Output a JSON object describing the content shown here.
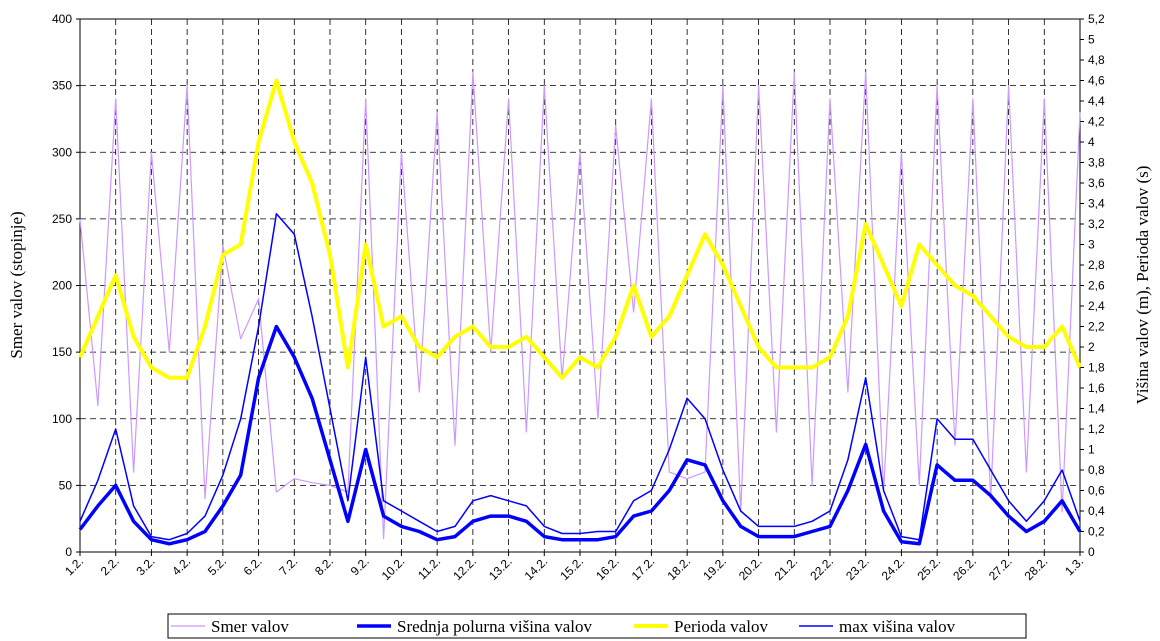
{
  "chart_data": {
    "type": "line",
    "ylabel": "Smer valov (stopinje)",
    "y2label": "Višina valov (m), Perioda valov (s)",
    "categories": [
      "1.2.",
      null,
      "2.2.",
      null,
      "3.2.",
      null,
      "4.2.",
      null,
      "5.2.",
      null,
      "6.2.",
      null,
      "7.2.",
      null,
      "8.2.",
      null,
      "9.2.",
      null,
      "10.2.",
      null,
      "11.2.",
      null,
      "12.2.",
      null,
      "13.2.",
      null,
      "14.2.",
      null,
      "15.2.",
      null,
      "16.2.",
      null,
      "17.2.",
      null,
      "18.2.",
      null,
      "19.2.",
      null,
      "20.2.",
      null,
      "21.2.",
      null,
      "22.2.",
      null,
      "23.2.",
      null,
      "24.2.",
      null,
      "25.2.",
      null,
      "26.2.",
      null,
      "27.2.",
      null,
      "28.2.",
      null,
      "1.3."
    ],
    "ylim": [
      0,
      400
    ],
    "yticks": [
      0,
      50,
      100,
      150,
      200,
      250,
      300,
      350,
      400
    ],
    "y2lim": [
      0,
      5.2
    ],
    "y2ticks": [
      0,
      {
        "value": 0.2,
        "label": "0,2"
      },
      {
        "value": 0.4,
        "label": "0,4"
      },
      {
        "value": 0.6,
        "label": "0,6"
      },
      {
        "value": 0.8,
        "label": "0,8"
      },
      1,
      {
        "value": 1.2,
        "label": "1,2"
      },
      {
        "value": 1.4,
        "label": "1,4"
      },
      {
        "value": 1.6,
        "label": "1,6"
      },
      {
        "value": 1.8,
        "label": "1,8"
      },
      2,
      {
        "value": 2.2,
        "label": "2,2"
      },
      {
        "value": 2.4,
        "label": "2,4"
      },
      {
        "value": 2.6,
        "label": "2,6"
      },
      {
        "value": 2.8,
        "label": "2,8"
      },
      3,
      {
        "value": 3.2,
        "label": "3,2"
      },
      {
        "value": 3.4,
        "label": "3,4"
      },
      {
        "value": 3.6,
        "label": "3,6"
      },
      {
        "value": 3.8,
        "label": "3,8"
      },
      4,
      {
        "value": 4.2,
        "label": "4,2"
      },
      {
        "value": 4.4,
        "label": "4,4"
      },
      {
        "value": 4.6,
        "label": "4,6"
      },
      {
        "value": 4.8,
        "label": "4,8"
      },
      5,
      {
        "value": 5.2,
        "label": "5,2"
      }
    ],
    "grid": true,
    "series": [
      {
        "name": "Smer valov",
        "color": "#cc99ff",
        "values": [
          250,
          110,
          340,
          60,
          300,
          150,
          350,
          40,
          230,
          160,
          190,
          45,
          55,
          52,
          50,
          45,
          340,
          10,
          300,
          120,
          330,
          80,
          360,
          150,
          340,
          90,
          350,
          130,
          300,
          100,
          320,
          180,
          340,
          60,
          55,
          60,
          350,
          30,
          350,
          90,
          360,
          50,
          340,
          120,
          360,
          45,
          300,
          50,
          350,
          80,
          340,
          40,
          350,
          60,
          340,
          30,
          330
        ]
      },
      {
        "name": "Srednja polurna višina valov",
        "color": "#0000ff",
        "axis": "y2",
        "values": [
          0.22,
          0.45,
          0.65,
          0.3,
          0.12,
          0.08,
          0.12,
          0.2,
          0.45,
          0.75,
          1.7,
          2.2,
          1.9,
          1.5,
          0.9,
          0.3,
          1.0,
          0.35,
          0.25,
          0.2,
          0.12,
          0.15,
          0.3,
          0.35,
          0.35,
          0.3,
          0.15,
          0.12,
          0.12,
          0.12,
          0.15,
          0.35,
          0.4,
          0.6,
          0.9,
          0.85,
          0.5,
          0.25,
          0.15,
          0.15,
          0.15,
          0.2,
          0.25,
          0.6,
          1.05,
          0.4,
          0.1,
          0.08,
          0.85,
          0.7,
          0.7,
          0.55,
          0.35,
          0.2,
          0.3,
          0.5,
          0.2
        ]
      },
      {
        "name": "Perioda valov",
        "color": "#ffff00",
        "axis": "y2",
        "values": [
          1.9,
          2.3,
          2.7,
          2.1,
          1.8,
          1.7,
          1.7,
          2.2,
          2.9,
          3.0,
          4.0,
          4.6,
          4.0,
          3.6,
          2.9,
          1.8,
          3.0,
          2.2,
          2.3,
          2.0,
          1.9,
          2.1,
          2.2,
          2.0,
          2.0,
          2.1,
          1.9,
          1.7,
          1.9,
          1.8,
          2.1,
          2.6,
          2.1,
          2.3,
          2.7,
          3.1,
          2.8,
          2.4,
          2.0,
          1.8,
          1.8,
          1.8,
          1.9,
          2.3,
          3.2,
          2.8,
          2.4,
          3.0,
          2.8,
          2.6,
          2.5,
          2.3,
          2.1,
          2.0,
          2.0,
          2.2,
          1.8
        ]
      },
      {
        "name": "max višina valov",
        "color": "#0000ff",
        "axis": "y2",
        "values": [
          0.3,
          0.7,
          1.2,
          0.45,
          0.15,
          0.12,
          0.18,
          0.35,
          0.75,
          1.3,
          2.2,
          3.3,
          3.1,
          2.3,
          1.4,
          0.5,
          1.9,
          0.5,
          0.4,
          0.3,
          0.2,
          0.25,
          0.5,
          0.55,
          0.5,
          0.45,
          0.25,
          0.18,
          0.18,
          0.2,
          0.2,
          0.5,
          0.6,
          1.0,
          1.5,
          1.3,
          0.8,
          0.4,
          0.25,
          0.25,
          0.25,
          0.3,
          0.4,
          0.9,
          1.7,
          0.6,
          0.15,
          0.12,
          1.3,
          1.1,
          1.1,
          0.8,
          0.5,
          0.3,
          0.5,
          0.8,
          0.3
        ]
      }
    ]
  }
}
